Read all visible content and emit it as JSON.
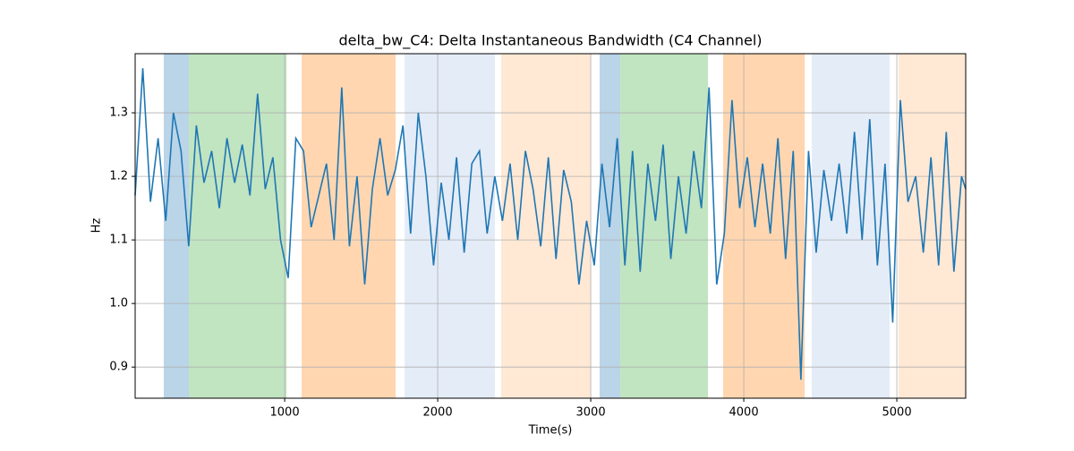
{
  "chart_data": {
    "type": "line",
    "title": "delta_bw_C4: Delta Instantaneous Bandwidth (C4 Channel)",
    "xlabel": "Time(s)",
    "ylabel": "Hz",
    "xlim": [
      23,
      5450
    ],
    "ylim": [
      0.851,
      1.393
    ],
    "xticks": [
      1000,
      2000,
      3000,
      4000,
      5000
    ],
    "yticks": [
      0.9,
      {
        "value": 1,
        "label": "1.0"
      },
      1.1,
      1.2,
      1.3
    ],
    "grid": true,
    "spans": [
      {
        "start": 210,
        "end": 374,
        "color": "#bad4e8"
      },
      {
        "start": 374,
        "end": 1012,
        "color": "#c1e4c1"
      },
      {
        "start": 1111,
        "end": 1725,
        "color": "#ffd6b0"
      },
      {
        "start": 1784,
        "end": 2374,
        "color": "#e4ecf7"
      },
      {
        "start": 2415,
        "end": 3000,
        "color": "#ffe8d4"
      },
      {
        "start": 3058,
        "end": 3193,
        "color": "#bad4e8"
      },
      {
        "start": 3193,
        "end": 3766,
        "color": "#c1e4c1"
      },
      {
        "start": 3865,
        "end": 4398,
        "color": "#ffd6b0"
      },
      {
        "start": 4444,
        "end": 4953,
        "color": "#e4ecf7"
      },
      {
        "start": 5012,
        "end": 5450,
        "color": "#ffe8d4"
      }
    ],
    "series": [
      {
        "color": "#1f77b4",
        "x": [
          23,
          73,
          123,
          173,
          223,
          273,
          323,
          373,
          423,
          473,
          523,
          573,
          623,
          673,
          723,
          773,
          823,
          873,
          923,
          973,
          1023,
          1073,
          1123,
          1173,
          1223,
          1273,
          1323,
          1373,
          1423,
          1473,
          1523,
          1573,
          1623,
          1673,
          1723,
          1773,
          1823,
          1873,
          1923,
          1973,
          2023,
          2073,
          2123,
          2173,
          2223,
          2273,
          2323,
          2373,
          2423,
          2473,
          2523,
          2573,
          2623,
          2673,
          2723,
          2773,
          2823,
          2873,
          2923,
          2973,
          3023,
          3073,
          3123,
          3173,
          3223,
          3273,
          3323,
          3373,
          3423,
          3473,
          3523,
          3573,
          3623,
          3673,
          3723,
          3773,
          3823,
          3873,
          3923,
          3973,
          4023,
          4073,
          4123,
          4173,
          4223,
          4273,
          4323,
          4373,
          4423,
          4473,
          4523,
          4573,
          4623,
          4673,
          4723,
          4773,
          4823,
          4873,
          4923,
          4973,
          5023,
          5073,
          5123,
          5173,
          5223,
          5273,
          5323,
          5373,
          5423,
          5450
        ],
        "values": [
          1.17,
          1.37,
          1.16,
          1.26,
          1.13,
          1.3,
          1.24,
          1.09,
          1.28,
          1.19,
          1.24,
          1.15,
          1.26,
          1.19,
          1.25,
          1.17,
          1.33,
          1.18,
          1.23,
          1.1,
          1.04,
          1.26,
          1.24,
          1.12,
          1.17,
          1.22,
          1.1,
          1.34,
          1.09,
          1.2,
          1.03,
          1.18,
          1.26,
          1.17,
          1.21,
          1.28,
          1.11,
          1.3,
          1.2,
          1.06,
          1.19,
          1.1,
          1.23,
          1.08,
          1.22,
          1.24,
          1.11,
          1.2,
          1.13,
          1.22,
          1.1,
          1.24,
          1.18,
          1.09,
          1.23,
          1.07,
          1.21,
          1.16,
          1.03,
          1.13,
          1.06,
          1.22,
          1.12,
          1.26,
          1.06,
          1.24,
          1.05,
          1.22,
          1.13,
          1.25,
          1.07,
          1.2,
          1.11,
          1.24,
          1.15,
          1.34,
          1.03,
          1.11,
          1.32,
          1.15,
          1.23,
          1.12,
          1.22,
          1.11,
          1.26,
          1.07,
          1.24,
          0.88,
          1.24,
          1.08,
          1.21,
          1.13,
          1.22,
          1.11,
          1.27,
          1.1,
          1.29,
          1.06,
          1.22,
          0.97,
          1.32,
          1.16,
          1.2,
          1.08,
          1.23,
          1.06,
          1.27,
          1.05,
          1.2,
          1.18
        ]
      }
    ]
  }
}
